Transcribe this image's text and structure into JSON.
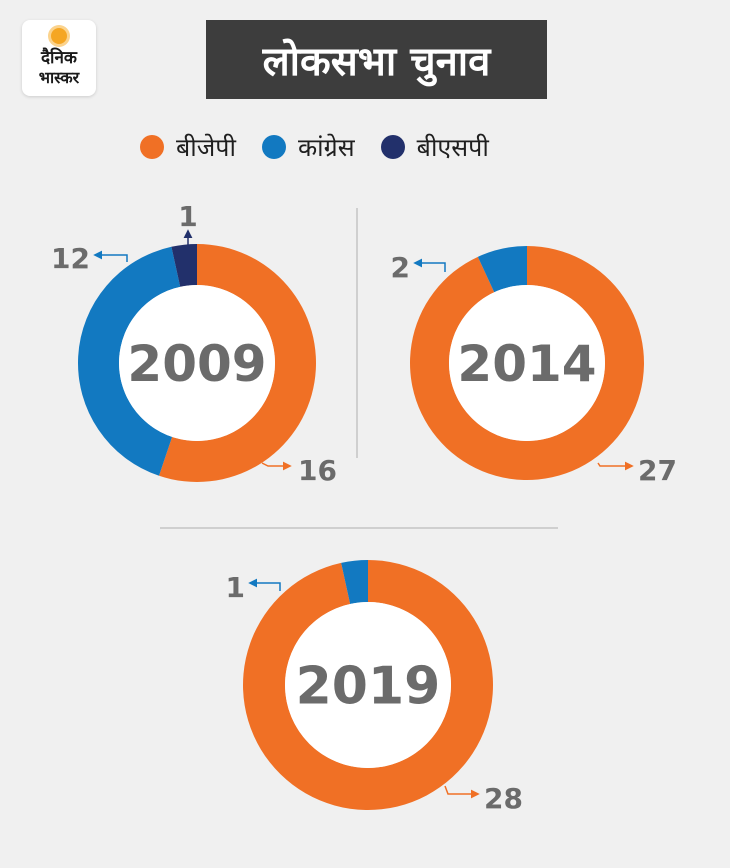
{
  "logo": {
    "line1": "दैनिक",
    "line2": "भास्कर"
  },
  "title": "लोकसभा चुनाव",
  "legend": [
    {
      "label": "बीजेपी",
      "color": "#f07025"
    },
    {
      "label": "कांग्रेस",
      "color": "#1279c1"
    },
    {
      "label": "बीएसपी",
      "color": "#22306b"
    }
  ],
  "chart_data": [
    {
      "type": "pie",
      "title": "2009",
      "categories": [
        "बीजेपी",
        "कांग्रेस",
        "बीएसपी"
      ],
      "values": [
        16,
        12,
        1
      ],
      "labels": [
        "16",
        "12",
        "1"
      ],
      "colors": [
        "#f07025",
        "#1279c1",
        "#22306b"
      ]
    },
    {
      "type": "pie",
      "title": "2014",
      "categories": [
        "बीजेपी",
        "कांग्रेस"
      ],
      "values": [
        27,
        2
      ],
      "labels": [
        "27",
        "2"
      ],
      "colors": [
        "#f07025",
        "#1279c1"
      ]
    },
    {
      "type": "pie",
      "title": "2019",
      "categories": [
        "बीजेपी",
        "कांग्रेस"
      ],
      "values": [
        28,
        1
      ],
      "labels": [
        "28",
        "1"
      ],
      "colors": [
        "#f07025",
        "#1279c1"
      ]
    }
  ]
}
